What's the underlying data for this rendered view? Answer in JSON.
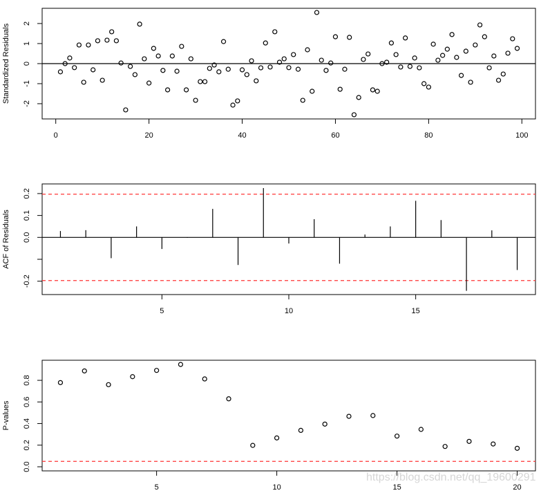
{
  "watermark": "https://blog.csdn.net/qq_19600291",
  "chart_data": [
    {
      "type": "scatter",
      "title": "",
      "xlabel": "",
      "ylabel": "Standardized Residuals",
      "xlim": [
        -2.92,
        102.92
      ],
      "ylim": [
        -2.76,
        2.76
      ],
      "xticks": [
        0,
        20,
        40,
        60,
        80,
        100
      ],
      "yticks": [
        -2,
        -1,
        0,
        1,
        2
      ],
      "hline": {
        "value": 0,
        "color": "#000000",
        "dashed": false
      },
      "x_start": 1,
      "values": [
        -0.41,
        0,
        0.28,
        -0.2,
        0.93,
        -0.93,
        0.93,
        -0.31,
        1.14,
        -0.83,
        1.17,
        1.59,
        1.14,
        0.03,
        -2.31,
        -0.14,
        -0.55,
        1.97,
        0.24,
        -0.97,
        0.76,
        0.38,
        -0.34,
        -1.31,
        0.38,
        -0.38,
        0.86,
        -1.31,
        0.24,
        -1.83,
        -0.9,
        -0.9,
        -0.24,
        -0.07,
        -0.41,
        1.1,
        -0.28,
        -2.07,
        -1.86,
        -0.31,
        -0.55,
        0.14,
        -0.86,
        -0.21,
        1.03,
        -0.17,
        1.59,
        0.07,
        0.24,
        -0.2,
        0.45,
        -0.28,
        -1.83,
        0.69,
        -1.38,
        2.55,
        0.17,
        -0.34,
        0.03,
        1.34,
        -1.28,
        -0.28,
        1.31,
        -2.55,
        -1.69,
        0.21,
        0.48,
        -1.31,
        -1.38,
        0,
        0.07,
        1.03,
        0.45,
        -0.17,
        1.28,
        -0.14,
        0.28,
        -0.21,
        -1,
        -1.17,
        0.97,
        0.17,
        0.41,
        0.72,
        1.45,
        0.31,
        -0.59,
        0.62,
        -0.93,
        0.93,
        1.93,
        1.34,
        -0.21,
        0.38,
        -0.83,
        -0.52,
        0.52,
        1.24,
        0.76
      ]
    },
    {
      "type": "bar",
      "subtype": "acf-spikes",
      "title": "",
      "xlabel": "",
      "ylabel": "ACF of Residuals",
      "xlim": [
        0.28,
        19.72
      ],
      "ylim": [
        -0.261,
        0.244
      ],
      "xticks": [
        5,
        10,
        15
      ],
      "yticks": [
        -0.2,
        -0.1,
        0.0,
        0.1,
        0.2
      ],
      "ytick_labels": [
        "-0.2",
        "",
        "0.0",
        "0.1",
        "0.2"
      ],
      "x_start": 1,
      "values": [
        0.029,
        0.033,
        -0.095,
        0.05,
        -0.053,
        -0.002,
        0.13,
        -0.126,
        0.225,
        -0.028,
        0.083,
        -0.12,
        0.013,
        0.05,
        0.167,
        0.079,
        -0.244,
        0.032,
        -0.149
      ],
      "hline": {
        "value": 0,
        "color": "#000000",
        "dashed": false
      },
      "bounds": {
        "values": [
          0.197,
          -0.197
        ],
        "color": "#ff3333",
        "dashed": true
      }
    },
    {
      "type": "scatter",
      "title": "",
      "xlabel": "",
      "ylabel": "P-values",
      "xlim": [
        0.24,
        20.76
      ],
      "ylim": [
        -0.038,
        0.986
      ],
      "xticks": [
        5,
        10,
        15,
        20
      ],
      "yticks": [
        0.0,
        0.2,
        0.4,
        0.6,
        0.8
      ],
      "ytick_labels": [
        "0.0",
        "0.2",
        "0.4",
        "0.6",
        "0.8"
      ],
      "x_start": 1,
      "values": [
        0.779,
        0.887,
        0.76,
        0.834,
        0.892,
        0.947,
        0.813,
        0.629,
        0.198,
        0.267,
        0.337,
        0.395,
        0.467,
        0.474,
        0.284,
        0.346,
        0.188,
        0.235,
        0.211,
        0.171
      ],
      "bounds": {
        "values": [
          0.05
        ],
        "color": "#ff3333",
        "dashed": true
      }
    }
  ]
}
